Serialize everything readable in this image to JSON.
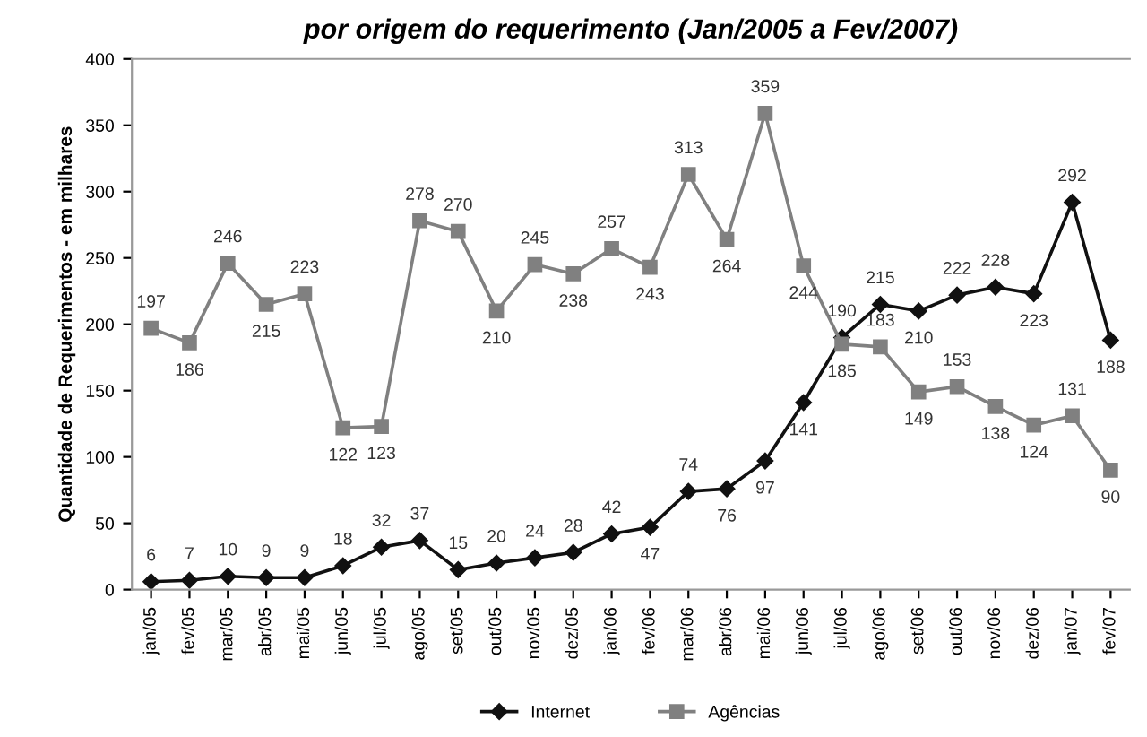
{
  "chart_data": {
    "type": "line",
    "title": "por origem do requerimento (Jan/2005 a Fev/2007)",
    "ylabel": "Quantidade de Requerimentos - em milhares",
    "categories": [
      "jan/05",
      "fev/05",
      "mar/05",
      "abr/05",
      "mai/05",
      "jun/05",
      "jul/05",
      "ago/05",
      "set/05",
      "out/05",
      "nov/05",
      "dez/05",
      "jan/06",
      "fev/06",
      "mar/06",
      "abr/06",
      "mai/06",
      "jun/06",
      "jul/06",
      "ago/06",
      "set/06",
      "out/06",
      "nov/06",
      "dez/06",
      "jan/07",
      "fev/07"
    ],
    "series": [
      {
        "name": "Internet",
        "color": "#111111",
        "marker": "diamond",
        "values": [
          6,
          7,
          10,
          9,
          9,
          18,
          32,
          37,
          15,
          20,
          24,
          28,
          42,
          47,
          74,
          76,
          97,
          141,
          190,
          215,
          210,
          222,
          228,
          223,
          292,
          188
        ]
      },
      {
        "name": "Agências",
        "color": "#808080",
        "marker": "square",
        "values": [
          197,
          186,
          246,
          215,
          223,
          122,
          123,
          278,
          270,
          210,
          245,
          238,
          257,
          243,
          313,
          264,
          359,
          244,
          185,
          183,
          149,
          153,
          138,
          124,
          131,
          90
        ]
      }
    ],
    "ylim": [
      0,
      400
    ],
    "yticks": [
      0,
      50,
      100,
      150,
      200,
      250,
      300,
      350,
      400
    ],
    "grid": false,
    "legend": "bottom",
    "data_labels": true,
    "line_style": "solid"
  }
}
